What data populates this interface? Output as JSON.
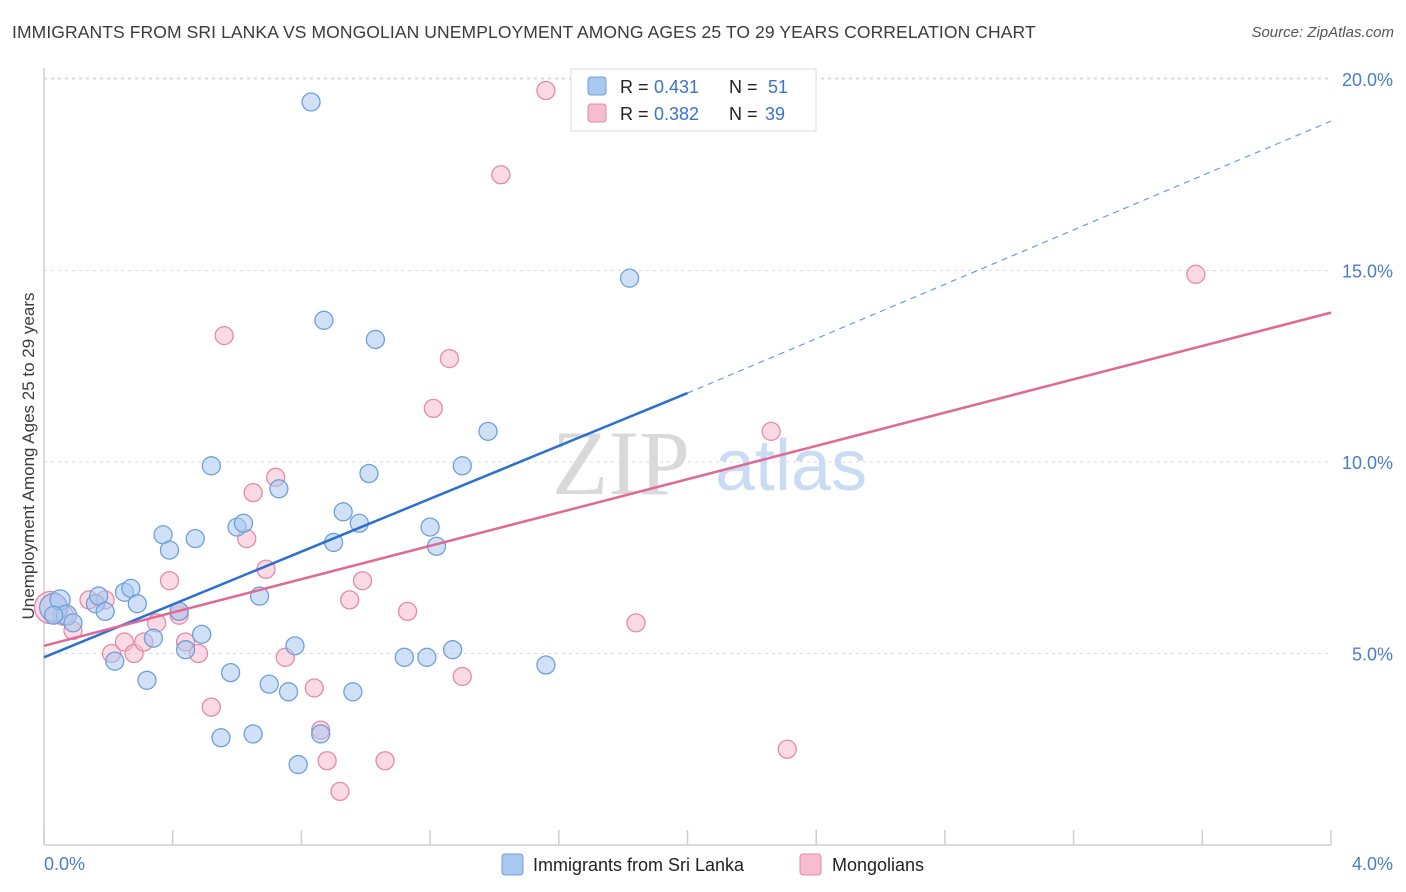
{
  "title": "IMMIGRANTS FROM SRI LANKA VS MONGOLIAN UNEMPLOYMENT AMONG AGES 25 TO 29 YEARS CORRELATION CHART",
  "source": "Source: ZipAtlas.com",
  "watermark": {
    "zip": "ZIP",
    "atlas": "atlas"
  },
  "colors": {
    "blue_fill": "#a9c8f0",
    "blue_stroke": "#6f9fd9",
    "blue_line": "#2b6fcf",
    "pink_fill": "#f7bcd0",
    "pink_stroke": "#e58aa9",
    "pink_line": "#e06a95",
    "grid": "#d9d9d9"
  },
  "legend": {
    "rows": [
      {
        "r_label": "R =",
        "r_value": "0.431",
        "n_label": "N =",
        "n_value": "51"
      },
      {
        "r_label": "R =",
        "r_value": "0.382",
        "n_label": "N =",
        "n_value": "39"
      }
    ]
  },
  "chart_data": {
    "type": "scatter",
    "ylabel": "Unemployment Among Ages 25 to 29 years",
    "xlim": [
      0,
      4.0
    ],
    "ylim": [
      0,
      20.0
    ],
    "x_tick_labels": [
      "0.0%",
      "4.0%"
    ],
    "y_ticks": [
      5,
      10,
      15,
      20
    ],
    "y_tick_labels": [
      "5.0%",
      "10.0%",
      "15.0%",
      "20.0%"
    ],
    "grid": true,
    "legend_placement": "top-center",
    "series": [
      {
        "name": "Immigrants from Sri Lanka",
        "color": "#a9c8f0",
        "trend": {
          "x0": 0.0,
          "y0": 4.9,
          "x1": 2.0,
          "y1": 11.8,
          "dash_to_x": 4.0,
          "dash_to_y": 18.9
        },
        "points": [
          [
            0.03,
            6.2,
            14
          ],
          [
            0.05,
            6.4,
            10
          ],
          [
            0.07,
            6.0,
            10
          ],
          [
            0.09,
            5.8,
            9
          ],
          [
            0.16,
            6.3,
            9
          ],
          [
            0.17,
            6.5,
            9
          ],
          [
            0.19,
            6.1,
            9
          ],
          [
            0.22,
            4.8,
            9
          ],
          [
            0.25,
            6.6,
            9
          ],
          [
            0.27,
            6.7,
            9
          ],
          [
            0.29,
            6.3,
            9
          ],
          [
            0.32,
            4.3,
            9
          ],
          [
            0.34,
            5.4,
            9
          ],
          [
            0.37,
            8.1,
            9
          ],
          [
            0.39,
            7.7,
            9
          ],
          [
            0.42,
            6.1,
            9
          ],
          [
            0.44,
            5.1,
            9
          ],
          [
            0.47,
            8.0,
            9
          ],
          [
            0.49,
            5.5,
            9
          ],
          [
            0.52,
            9.9,
            9
          ],
          [
            0.55,
            2.8,
            9
          ],
          [
            0.58,
            4.5,
            9
          ],
          [
            0.6,
            8.3,
            9
          ],
          [
            0.62,
            8.4,
            9
          ],
          [
            0.65,
            2.9,
            9
          ],
          [
            0.67,
            6.5,
            9
          ],
          [
            0.7,
            4.2,
            9
          ],
          [
            0.73,
            9.3,
            9
          ],
          [
            0.76,
            4.0,
            9
          ],
          [
            0.78,
            5.2,
            9
          ],
          [
            0.79,
            2.1,
            9
          ],
          [
            0.83,
            19.4,
            9
          ],
          [
            0.86,
            2.9,
            9
          ],
          [
            0.87,
            13.7,
            9
          ],
          [
            0.9,
            7.9,
            9
          ],
          [
            0.93,
            8.7,
            9
          ],
          [
            0.96,
            4.0,
            9
          ],
          [
            0.98,
            8.4,
            9
          ],
          [
            1.01,
            9.7,
            9
          ],
          [
            1.03,
            13.2,
            9
          ],
          [
            1.12,
            4.9,
            9
          ],
          [
            1.19,
            4.9,
            9
          ],
          [
            1.2,
            8.3,
            9
          ],
          [
            1.22,
            7.8,
            9
          ],
          [
            1.27,
            5.1,
            9
          ],
          [
            1.3,
            9.9,
            9
          ],
          [
            1.38,
            10.8,
            9
          ],
          [
            1.56,
            4.7,
            9
          ],
          [
            1.82,
            14.8,
            9
          ],
          [
            1.81,
            20.0,
            9
          ],
          [
            0.03,
            6.0,
            9
          ]
        ]
      },
      {
        "name": "Mongolians",
        "color": "#f7bcd0",
        "trend": {
          "x0": 0.0,
          "y0": 5.2,
          "x1": 4.0,
          "y1": 13.9
        },
        "points": [
          [
            0.02,
            6.2,
            16
          ],
          [
            0.06,
            6.0,
            10
          ],
          [
            0.09,
            5.6,
            9
          ],
          [
            0.14,
            6.4,
            9
          ],
          [
            0.19,
            6.4,
            9
          ],
          [
            0.21,
            5.0,
            9
          ],
          [
            0.25,
            5.3,
            9
          ],
          [
            0.28,
            5.0,
            9
          ],
          [
            0.31,
            5.3,
            9
          ],
          [
            0.35,
            5.8,
            9
          ],
          [
            0.39,
            6.9,
            9
          ],
          [
            0.42,
            6.0,
            9
          ],
          [
            0.44,
            5.3,
            9
          ],
          [
            0.48,
            5.0,
            9
          ],
          [
            0.52,
            3.6,
            9
          ],
          [
            0.56,
            13.3,
            9
          ],
          [
            0.63,
            8.0,
            9
          ],
          [
            0.65,
            9.2,
            9
          ],
          [
            0.69,
            7.2,
            9
          ],
          [
            0.72,
            9.6,
            9
          ],
          [
            0.75,
            4.9,
            9
          ],
          [
            0.84,
            4.1,
            9
          ],
          [
            0.86,
            3.0,
            9
          ],
          [
            0.88,
            2.2,
            9
          ],
          [
            0.92,
            1.4,
            9
          ],
          [
            0.95,
            6.4,
            9
          ],
          [
            0.99,
            6.9,
            9
          ],
          [
            1.06,
            2.2,
            9
          ],
          [
            1.13,
            6.1,
            9
          ],
          [
            1.26,
            12.7,
            9
          ],
          [
            1.21,
            11.4,
            9
          ],
          [
            1.3,
            4.4,
            9
          ],
          [
            1.42,
            17.5,
            9
          ],
          [
            1.56,
            19.7,
            9
          ],
          [
            1.84,
            5.8,
            9
          ],
          [
            2.26,
            10.8,
            9
          ],
          [
            2.31,
            2.5,
            9
          ],
          [
            3.58,
            14.9,
            9
          ],
          [
            0.42,
            6.1,
            9
          ]
        ]
      }
    ]
  }
}
